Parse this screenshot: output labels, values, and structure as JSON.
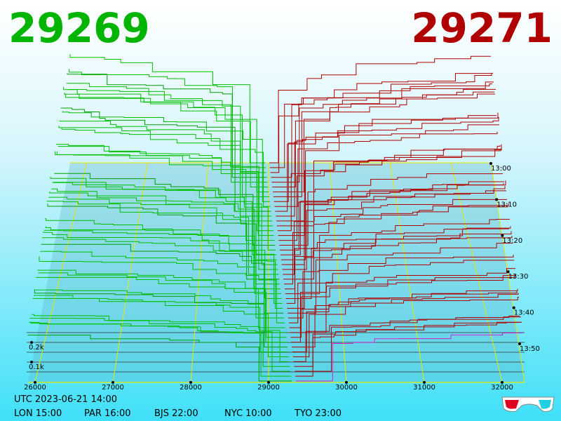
{
  "header": {
    "bid": "29269",
    "ask": "29271"
  },
  "axis": {
    "price_ticks": [
      "26000",
      "27000",
      "28000",
      "29000",
      "30000",
      "31000",
      "32000"
    ],
    "time_ticks": [
      "13:00",
      "13:10",
      "13:20",
      "13:30",
      "13:40",
      "13:50"
    ],
    "depth_ticks": [
      "0.2k",
      "0.1k"
    ]
  },
  "footer": {
    "utc": "UTC 2023-06-21 14:00",
    "zones": [
      "LON 15:00",
      "PAR 16:00",
      "BJS 22:00",
      "NYC 10:00",
      "TYO 23:00"
    ]
  }
}
